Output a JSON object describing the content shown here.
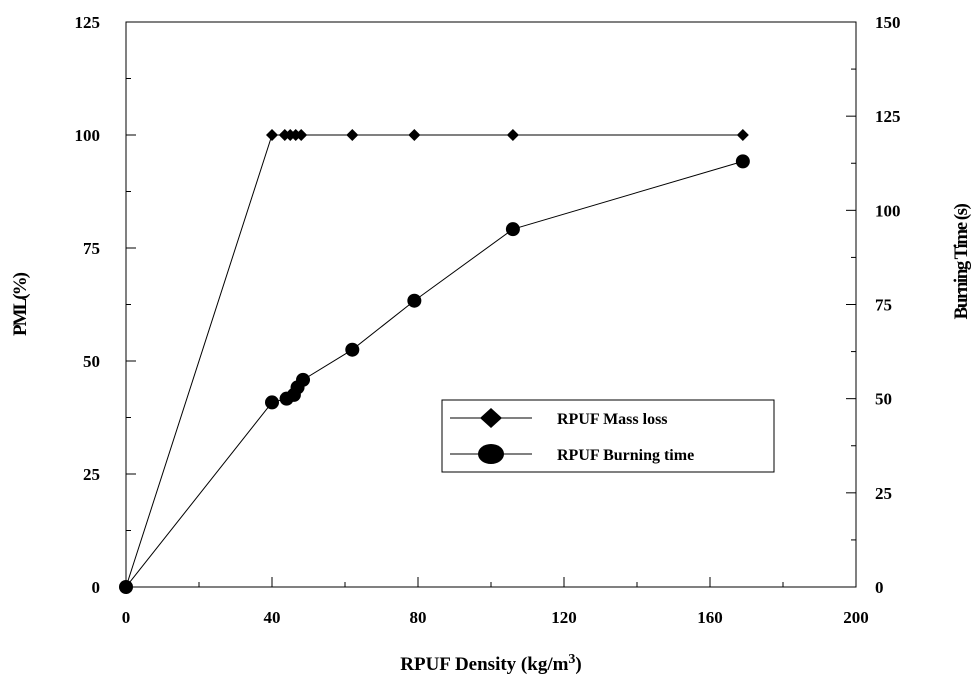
{
  "chart_data": {
    "type": "line",
    "title": "",
    "xlabel": "RPUF Density (kg/m",
    "xlabel_superscript": "3",
    "xlabel_suffix": ")",
    "ylabel": "PML(%)",
    "y2label": "Burning Time (s)",
    "xlim": [
      0,
      200
    ],
    "ylim": [
      0,
      125
    ],
    "y2lim": [
      0,
      150
    ],
    "x_ticks": [
      "0",
      "40",
      "80",
      "120",
      "160",
      "200"
    ],
    "y_ticks": [
      "0",
      "25",
      "50",
      "75",
      "100",
      "125"
    ],
    "y2_ticks": [
      "0",
      "25",
      "50",
      "75",
      "100",
      "125",
      "150"
    ],
    "grid": false,
    "legend_position": "center-right",
    "series": [
      {
        "name": "RPUF Mass loss",
        "axis": "left",
        "marker": "diamond",
        "points": [
          {
            "x": 0,
            "y": 0
          },
          {
            "x": 40,
            "y": 100
          },
          {
            "x": 43.5,
            "y": 100
          },
          {
            "x": 45,
            "y": 100
          },
          {
            "x": 46.5,
            "y": 100
          },
          {
            "x": 48,
            "y": 100
          },
          {
            "x": 62,
            "y": 100
          },
          {
            "x": 79,
            "y": 100
          },
          {
            "x": 106,
            "y": 100
          },
          {
            "x": 169,
            "y": 100
          }
        ]
      },
      {
        "name": "RPUF Burning time",
        "axis": "right",
        "marker": "circle",
        "points": [
          {
            "x": 0,
            "y": 0
          },
          {
            "x": 40,
            "y": 49
          },
          {
            "x": 44,
            "y": 50
          },
          {
            "x": 46,
            "y": 51
          },
          {
            "x": 47,
            "y": 53
          },
          {
            "x": 48.5,
            "y": 55
          },
          {
            "x": 62,
            "y": 63
          },
          {
            "x": 79,
            "y": 76
          },
          {
            "x": 106,
            "y": 95
          },
          {
            "x": 169,
            "y": 113
          }
        ]
      }
    ]
  }
}
